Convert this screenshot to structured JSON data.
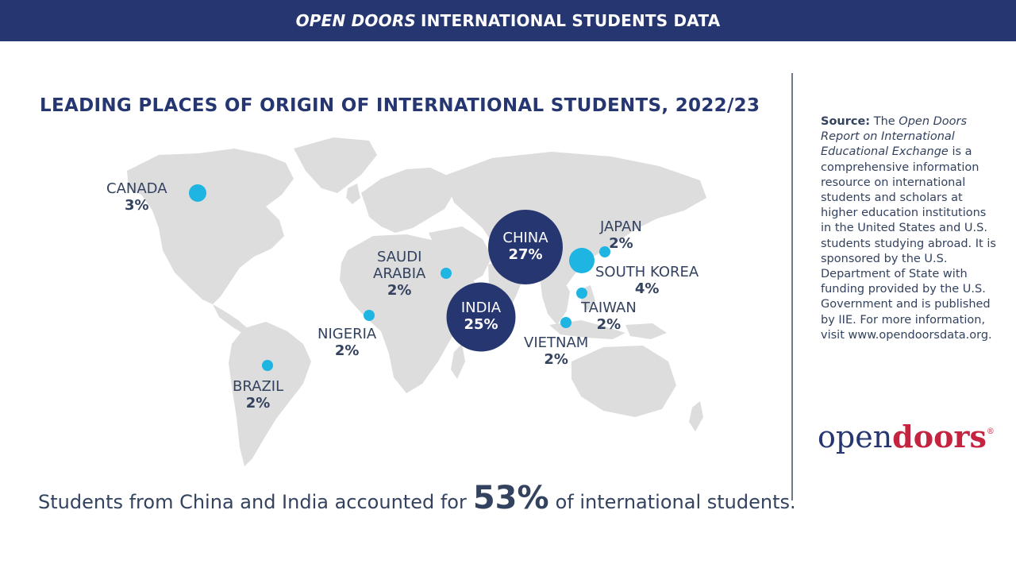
{
  "banner": {
    "brand": "OPEN DOORS",
    "rest": "INTERNATIONAL STUDENTS DATA"
  },
  "title": "LEADING PLACES OF ORIGIN OF INTERNATIONAL STUDENTS, 2022/23",
  "colors": {
    "banner": "#253670",
    "large_bubble": "#253670",
    "small_bubble": "#1eb5e3",
    "land": "#dddddd",
    "text": "#33425e",
    "logo_red": "#c4243f"
  },
  "places": [
    {
      "name": "CHINA",
      "pct": "27%",
      "share": 27
    },
    {
      "name": "INDIA",
      "pct": "25%",
      "share": 25
    },
    {
      "name": "SOUTH KOREA",
      "pct": "4%",
      "share": 4
    },
    {
      "name": "CANADA",
      "pct": "3%",
      "share": 3
    },
    {
      "name": "JAPAN",
      "pct": "2%",
      "share": 2
    },
    {
      "name": "SAUDI ARABIA",
      "name_line1": "SAUDI",
      "name_line2": "ARABIA",
      "pct": "2%",
      "share": 2
    },
    {
      "name": "TAIWAN",
      "pct": "2%",
      "share": 2
    },
    {
      "name": "NIGERIA",
      "pct": "2%",
      "share": 2
    },
    {
      "name": "VIETNAM",
      "pct": "2%",
      "share": 2
    },
    {
      "name": "BRAZIL",
      "pct": "2%",
      "share": 2
    }
  ],
  "footer": {
    "before": "Students from China and India accounted for",
    "highlight": "53%",
    "after": "of international students."
  },
  "source": {
    "label": "Source:",
    "t1": "The",
    "report_title": "Open Doors Report on International Educational Exchange",
    "t2": "is a comprehensive information resource on international students and scholars at higher education institutions in the United States and U.S. students studying abroad. It is sponsored by the U.S. Department of State with funding provided by the U.S. Government and is published by IIE. For more information, visit www.opendoorsdata.org."
  },
  "logo": {
    "part1": "open",
    "part2": "doors",
    "mark": "®"
  }
}
